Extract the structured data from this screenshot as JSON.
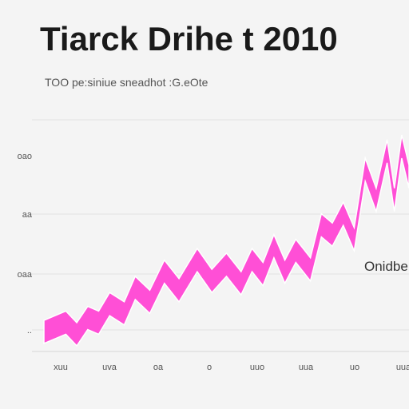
{
  "chart_data": {
    "type": "area",
    "title": "Tiarck Drihe t 2010",
    "subtitle": "TOO pe:siniue sneadhot :G.eOte",
    "ytick_labels": [
      "..",
      "oaa",
      "aa",
      "oao"
    ],
    "xtick_labels": [
      "xuu",
      "uva",
      "oa",
      "o",
      "uuo",
      "uua",
      "uo",
      "uua"
    ],
    "annotation": "Onidbe",
    "grid": true,
    "color": "#ff4fd6",
    "series": [
      {
        "x": [
          0,
          6,
          9,
          12,
          15,
          18,
          22,
          25,
          29,
          33,
          37,
          42,
          46,
          50,
          54,
          57,
          60,
          63,
          66,
          69,
          73,
          76,
          79,
          82,
          85,
          88,
          91,
          94,
          96,
          98,
          100
        ],
        "values": [
          5,
          9,
          4,
          11,
          9,
          17,
          13,
          24,
          18,
          31,
          23,
          36,
          27,
          34,
          26,
          36,
          30,
          42,
          31,
          40,
          32,
          51,
          47,
          56,
          45,
          75,
          62,
          83,
          62,
          85,
          72
        ]
      }
    ]
  }
}
